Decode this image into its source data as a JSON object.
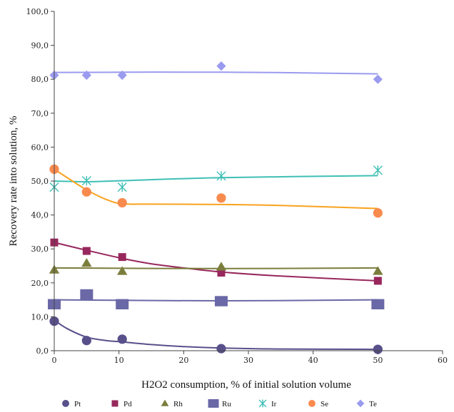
{
  "chart_data": {
    "type": "scatter",
    "title": "",
    "xlabel": "H2O2 consumption, % of initial solution volume",
    "ylabel": "Recovery rate into solution, %",
    "xlim": [
      0,
      60
    ],
    "ylim": [
      0,
      100
    ],
    "x_ticks": [
      "0",
      "10",
      "20",
      "30",
      "40",
      "50",
      "60"
    ],
    "y_ticks": [
      "0,0",
      "10,0",
      "20,0",
      "30,0",
      "40,0",
      "50,0",
      "60,0",
      "70,0",
      "80,0",
      "90,0",
      "100,0"
    ],
    "grid": false,
    "legend_position": "bottom",
    "series": [
      {
        "name": "Pt",
        "marker": "circle",
        "color": "#58508a",
        "x": [
          0,
          5,
          10.5,
          25.8,
          50
        ],
        "values": [
          8.7,
          3.0,
          3.4,
          0.6,
          0.4
        ],
        "trend": [
          [
            0,
            9.0
          ],
          [
            2,
            6.5
          ],
          [
            5,
            4.0
          ],
          [
            8,
            3.0
          ],
          [
            10.5,
            2.6
          ],
          [
            15,
            1.8
          ],
          [
            20,
            1.2
          ],
          [
            25.8,
            0.8
          ],
          [
            35,
            0.5
          ],
          [
            50,
            0.4
          ]
        ]
      },
      {
        "name": "Pd",
        "marker": "square",
        "color": "#97275c",
        "x": [
          0,
          5,
          10.5,
          25.8,
          50
        ],
        "values": [
          31.9,
          29.4,
          27.6,
          23.0,
          20.6
        ],
        "trend": [
          [
            0,
            31.9
          ],
          [
            5,
            29.6
          ],
          [
            10.5,
            27.2
          ],
          [
            15,
            25.6
          ],
          [
            20,
            24.4
          ],
          [
            25.8,
            23.2
          ],
          [
            35,
            22.0
          ],
          [
            50,
            20.6
          ]
        ]
      },
      {
        "name": "Rh",
        "marker": "triangle",
        "color": "#7b7d3c",
        "x": [
          0,
          5,
          10.5,
          25.8,
          50
        ],
        "values": [
          23.8,
          25.8,
          23.4,
          24.7,
          23.4
        ],
        "trend": [
          [
            0,
            24.4
          ],
          [
            25.8,
            24.2
          ],
          [
            50,
            24.4
          ]
        ]
      },
      {
        "name": "Ru",
        "marker": "bigsquare",
        "color": "#6a68a6",
        "x": [
          0,
          5,
          10.5,
          25.8,
          50
        ],
        "values": [
          13.7,
          16.6,
          13.7,
          14.6,
          13.7
        ],
        "trend": [
          [
            0,
            15.0
          ],
          [
            25.8,
            14.7
          ],
          [
            50,
            15.0
          ]
        ]
      },
      {
        "name": "Ir",
        "marker": "star",
        "color": "#3fbfb6",
        "x": [
          0,
          5,
          10.5,
          25.8,
          50
        ],
        "values": [
          48.2,
          50.1,
          48.2,
          51.5,
          53.2
        ],
        "trend": [
          [
            0,
            50.0
          ],
          [
            5,
            49.8
          ],
          [
            10.5,
            50.1
          ],
          [
            25.8,
            51.0
          ],
          [
            50,
            51.6
          ]
        ]
      },
      {
        "name": "Se",
        "marker": "circle",
        "color": "#f98a4e",
        "x": [
          0,
          5,
          10.5,
          25.8,
          50
        ],
        "values": [
          53.5,
          46.8,
          43.6,
          45.0,
          40.6
        ],
        "trend": [
          [
            0,
            53.5
          ],
          [
            2,
            51.0
          ],
          [
            5,
            47.4
          ],
          [
            8,
            44.6
          ],
          [
            10.5,
            43.3
          ],
          [
            15,
            43.2
          ],
          [
            25.8,
            43.1
          ],
          [
            35,
            42.8
          ],
          [
            50,
            41.9
          ]
        ]
      },
      {
        "name": "Te",
        "marker": "diamond",
        "color": "#9a9bef",
        "x": [
          0,
          5,
          10.5,
          25.8,
          50
        ],
        "values": [
          81.2,
          81.2,
          81.2,
          83.9,
          80.0
        ],
        "trend": [
          [
            0,
            82.0
          ],
          [
            25.8,
            82.1
          ],
          [
            50,
            81.6
          ]
        ]
      }
    ]
  },
  "colors": {
    "axis": "#444444",
    "trend_Pt": "#58508a",
    "trend_Pd": "#97275c",
    "trend_Rh": "#7b7d3c",
    "trend_Ru": "#6a68a6",
    "trend_Ir": "#3fbfb6",
    "trend_Se": "#f9a21f",
    "trend_Te": "#9a9bef"
  }
}
